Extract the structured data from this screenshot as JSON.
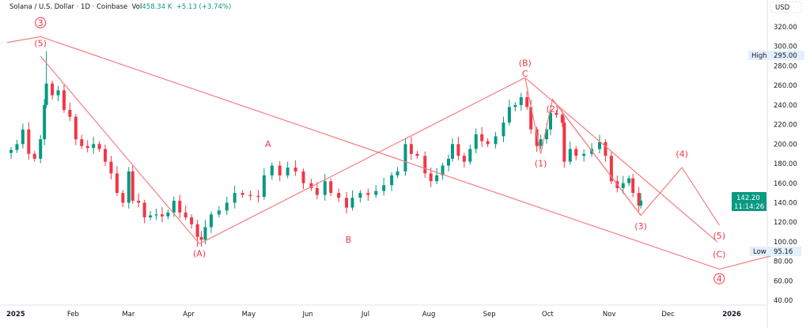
{
  "header": {
    "symbol": "Solana / U.S. Dollar · 1D · Coinbase",
    "vol_label": "Vol",
    "vol_value": "458.34 K",
    "change": "+5.13 (+3.74%)"
  },
  "price_axis": {
    "currency": "USD",
    "high_label": "High",
    "high_value": "295.00",
    "low_label": "Low",
    "low_value": "95.16",
    "last_price": "142.20",
    "countdown": "11:14:26"
  },
  "colors": {
    "up": "#089981",
    "down": "#f23645",
    "wave": "#f77c80",
    "label": "#f23645"
  },
  "chart_data": {
    "type": "candlestick",
    "ylim": [
      30,
      335
    ],
    "y_ticks": [
      "320.00",
      "300.00",
      "280.00",
      "260.00",
      "240.00",
      "220.00",
      "200.00",
      "180.00",
      "160.00",
      "140.00",
      "120.00",
      "100.00",
      "80.00",
      "60.00",
      "40.00"
    ],
    "x_ticks": [
      {
        "label": "2025",
        "date": "2025-01-01",
        "bold": true
      },
      {
        "label": "Feb",
        "date": "2025-02-01"
      },
      {
        "label": "Mar",
        "date": "2025-03-01"
      },
      {
        "label": "Apr",
        "date": "2025-04-01"
      },
      {
        "label": "May",
        "date": "2025-05-01"
      },
      {
        "label": "Jun",
        "date": "2025-06-01"
      },
      {
        "label": "Jul",
        "date": "2025-07-01"
      },
      {
        "label": "Aug",
        "date": "2025-08-01"
      },
      {
        "label": "Sep",
        "date": "2025-09-01"
      },
      {
        "label": "Oct",
        "date": "2025-10-01"
      },
      {
        "label": "Nov",
        "date": "2025-11-01"
      },
      {
        "label": "Dec",
        "date": "2025-12-01"
      },
      {
        "label": "2026",
        "date": "2026-01-01",
        "bold": true
      }
    ],
    "closes": [
      [
        "2025-01-01",
        194
      ],
      [
        "2025-01-04",
        200
      ],
      [
        "2025-01-07",
        215
      ],
      [
        "2025-01-10",
        190
      ],
      [
        "2025-01-13",
        185
      ],
      [
        "2025-01-16",
        205
      ],
      [
        "2025-01-18",
        240
      ],
      [
        "2025-01-19",
        262
      ],
      [
        "2025-01-22",
        250
      ],
      [
        "2025-01-25",
        255
      ],
      [
        "2025-01-28",
        235
      ],
      [
        "2025-01-31",
        228
      ],
      [
        "2025-02-03",
        205
      ],
      [
        "2025-02-06",
        198
      ],
      [
        "2025-02-09",
        196
      ],
      [
        "2025-02-12",
        200
      ],
      [
        "2025-02-15",
        195
      ],
      [
        "2025-02-18",
        182
      ],
      [
        "2025-02-21",
        170
      ],
      [
        "2025-02-24",
        150
      ],
      [
        "2025-02-27",
        140
      ],
      [
        "2025-03-02",
        172
      ],
      [
        "2025-03-04",
        142
      ],
      [
        "2025-03-07",
        140
      ],
      [
        "2025-03-10",
        125
      ],
      [
        "2025-03-13",
        127
      ],
      [
        "2025-03-16",
        128
      ],
      [
        "2025-03-19",
        126
      ],
      [
        "2025-03-22",
        130
      ],
      [
        "2025-03-25",
        142
      ],
      [
        "2025-03-28",
        130
      ],
      [
        "2025-03-31",
        125
      ],
      [
        "2025-04-03",
        118
      ],
      [
        "2025-04-06",
        105
      ],
      [
        "2025-04-08",
        102
      ],
      [
        "2025-04-10",
        115
      ],
      [
        "2025-04-13",
        128
      ],
      [
        "2025-04-17",
        132
      ],
      [
        "2025-04-21",
        140
      ],
      [
        "2025-04-25",
        150
      ],
      [
        "2025-04-29",
        148
      ],
      [
        "2025-05-03",
        147
      ],
      [
        "2025-05-07",
        146
      ],
      [
        "2025-05-10",
        168
      ],
      [
        "2025-05-14",
        178
      ],
      [
        "2025-05-18",
        168
      ],
      [
        "2025-05-22",
        176
      ],
      [
        "2025-05-26",
        172
      ],
      [
        "2025-05-30",
        160
      ],
      [
        "2025-06-03",
        155
      ],
      [
        "2025-06-06",
        148
      ],
      [
        "2025-06-10",
        162
      ],
      [
        "2025-06-13",
        150
      ],
      [
        "2025-06-17",
        145
      ],
      [
        "2025-06-21",
        135
      ],
      [
        "2025-06-24",
        145
      ],
      [
        "2025-06-28",
        150
      ],
      [
        "2025-07-02",
        148
      ],
      [
        "2025-07-06",
        152
      ],
      [
        "2025-07-10",
        158
      ],
      [
        "2025-07-14",
        168
      ],
      [
        "2025-07-17",
        172
      ],
      [
        "2025-07-21",
        200
      ],
      [
        "2025-07-24",
        190
      ],
      [
        "2025-07-27",
        188
      ],
      [
        "2025-07-31",
        170
      ],
      [
        "2025-08-03",
        162
      ],
      [
        "2025-08-06",
        168
      ],
      [
        "2025-08-09",
        178
      ],
      [
        "2025-08-12",
        185
      ],
      [
        "2025-08-14",
        200
      ],
      [
        "2025-08-17",
        188
      ],
      [
        "2025-08-20",
        182
      ],
      [
        "2025-08-23",
        195
      ],
      [
        "2025-08-26",
        210
      ],
      [
        "2025-08-29",
        203
      ],
      [
        "2025-09-01",
        200
      ],
      [
        "2025-09-05",
        208
      ],
      [
        "2025-09-09",
        222
      ],
      [
        "2025-09-12",
        238
      ],
      [
        "2025-09-15",
        240
      ],
      [
        "2025-09-18",
        248
      ],
      [
        "2025-09-21",
        238
      ],
      [
        "2025-09-23",
        215
      ],
      [
        "2025-09-26",
        198
      ],
      [
        "2025-09-28",
        205
      ],
      [
        "2025-10-01",
        215
      ],
      [
        "2025-10-03",
        232
      ],
      [
        "2025-10-06",
        230
      ],
      [
        "2025-10-09",
        222
      ],
      [
        "2025-10-10",
        182
      ],
      [
        "2025-10-13",
        195
      ],
      [
        "2025-10-16",
        188
      ],
      [
        "2025-10-20",
        190
      ],
      [
        "2025-10-24",
        195
      ],
      [
        "2025-10-28",
        202
      ],
      [
        "2025-10-31",
        188
      ],
      [
        "2025-11-03",
        162
      ],
      [
        "2025-11-06",
        155
      ],
      [
        "2025-11-09",
        160
      ],
      [
        "2025-11-12",
        165
      ],
      [
        "2025-11-14",
        150
      ],
      [
        "2025-11-17",
        137
      ],
      [
        "2025-11-18",
        142.2
      ]
    ],
    "high_point": [
      "2025-01-19",
      295.0
    ],
    "low_point": [
      "2025-04-07",
      95.16
    ],
    "wave_lines": [
      [
        [
          "2024-12-30",
          304
        ],
        [
          "2025-01-16",
          310
        ],
        [
          "2025-12-28",
          72
        ],
        [
          "2026-01-28",
          88
        ]
      ],
      [
        [
          "2025-01-16",
          290
        ],
        [
          "2025-04-07",
          98
        ]
      ],
      [
        [
          "2025-04-07",
          98
        ],
        [
          "2025-09-20",
          268
        ]
      ],
      [
        [
          "2025-09-20",
          268
        ],
        [
          "2025-09-28",
          190
        ],
        [
          "2025-10-04",
          246
        ],
        [
          "2025-11-18",
          127
        ],
        [
          "2025-12-09",
          176
        ],
        [
          "2025-12-28",
          117
        ]
      ],
      [
        [
          "2025-09-20",
          268
        ],
        [
          "2025-12-27",
          100
        ]
      ],
      [
        [
          "2025-10-04",
          246
        ],
        [
          "2025-11-18",
          127
        ]
      ]
    ],
    "wave_labels": [
      {
        "text": "3",
        "date": "2025-01-16",
        "price": 321,
        "circle": true
      },
      {
        "text": "(5)",
        "date": "2025-01-16",
        "price": 300
      },
      {
        "text": "(A)",
        "date": "2025-04-07",
        "price": 85
      },
      {
        "text": "A",
        "date": "2025-05-12",
        "price": 197
      },
      {
        "text": "B",
        "date": "2025-06-22",
        "price": 99
      },
      {
        "text": "(B)",
        "date": "2025-09-20",
        "price": 280
      },
      {
        "text": "C",
        "date": "2025-09-20",
        "price": 269
      },
      {
        "text": "(1)",
        "date": "2025-09-28",
        "price": 177
      },
      {
        "text": "(2)",
        "date": "2025-10-04",
        "price": 233
      },
      {
        "text": "(3)",
        "date": "2025-11-18",
        "price": 113
      },
      {
        "text": "(4)",
        "date": "2025-12-09",
        "price": 187
      },
      {
        "text": "(5)",
        "date": "2025-12-28",
        "price": 103
      },
      {
        "text": "(C)",
        "date": "2025-12-28",
        "price": 84
      },
      {
        "text": "4",
        "date": "2025-12-28",
        "price": 59,
        "circle": true
      }
    ]
  }
}
